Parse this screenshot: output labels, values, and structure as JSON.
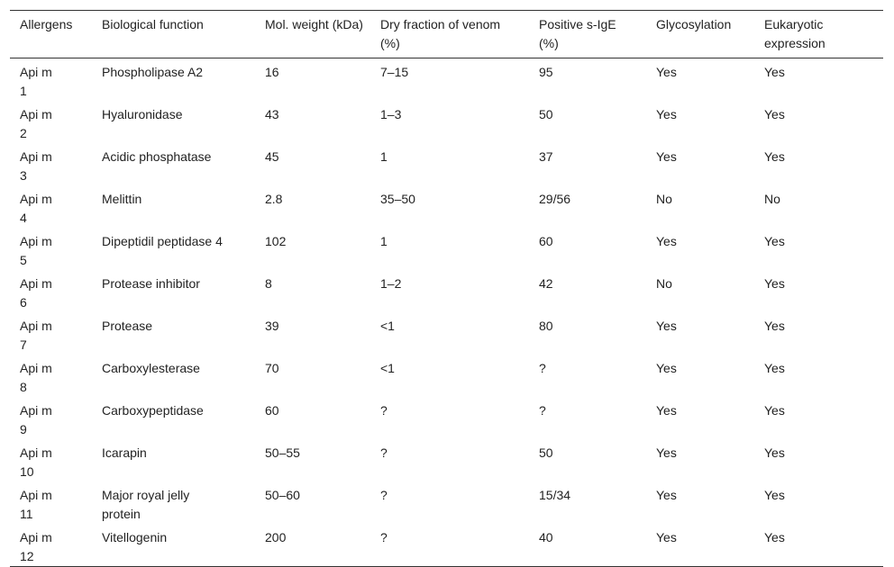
{
  "table": {
    "header": [
      "Allergens",
      "Biological function",
      "Mol. weight (kDa)",
      "Dry fraction of venom (%)",
      "Positive s-IgE (%)",
      "Glycosylation",
      "Eukaryotic expression"
    ],
    "rows": [
      [
        "Api m 1",
        "Phospholipase A2",
        "16",
        "7–15",
        "95",
        "Yes",
        "Yes"
      ],
      [
        "Api m 2",
        "Hyaluronidase",
        "43",
        "1–3",
        "50",
        "Yes",
        "Yes"
      ],
      [
        "Api m 3",
        "Acidic phosphatase",
        "45",
        "1",
        "37",
        "Yes",
        "Yes"
      ],
      [
        "Api m 4",
        "Melittin",
        "2.8",
        "35–50",
        "29/56",
        "No",
        "No"
      ],
      [
        "Api m 5",
        "Dipeptidil peptidase 4",
        "102",
        "1",
        "60",
        "Yes",
        "Yes"
      ],
      [
        "Api m 6",
        "Protease inhibitor",
        "8",
        "1–2",
        "42",
        "No",
        "Yes"
      ],
      [
        "Api m 7",
        "Protease",
        "39",
        "<1",
        "80",
        "Yes",
        "Yes"
      ],
      [
        "Api m 8",
        "Carboxylesterase",
        "70",
        "<1",
        "?",
        "Yes",
        "Yes"
      ],
      [
        "Api m 9",
        "Carboxypeptidase",
        "60",
        "?",
        "?",
        "Yes",
        "Yes"
      ],
      [
        "Api m 10",
        "Icarapin",
        "50–55",
        "?",
        "50",
        "Yes",
        "Yes"
      ],
      [
        "Api m 11",
        "Major royal jelly protein",
        "50–60",
        "?",
        "15/34",
        "Yes",
        "Yes"
      ],
      [
        "Api m 12",
        "Vitellogenin",
        "200",
        "?",
        "40",
        "Yes",
        "Yes"
      ]
    ]
  }
}
